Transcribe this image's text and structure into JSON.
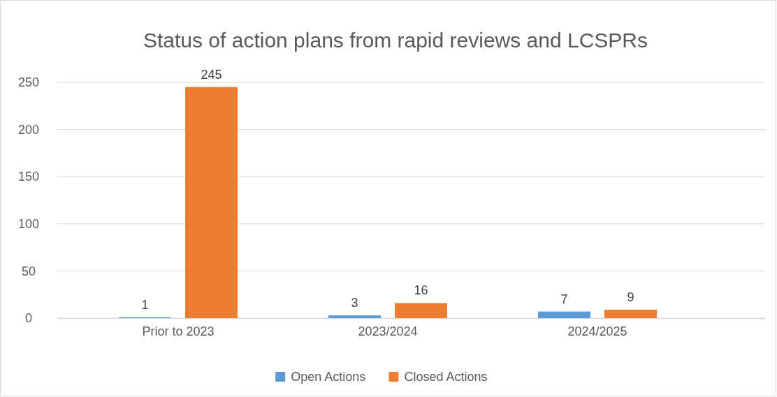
{
  "chart_data": {
    "type": "bar",
    "title": "Status of action plans from rapid reviews and LCSPRs",
    "categories": [
      "Prior to 2023",
      "2023/2024",
      "2024/2025"
    ],
    "series": [
      {
        "name": "Open Actions",
        "color": "#5b9bd5",
        "values": [
          1,
          3,
          7
        ]
      },
      {
        "name": "Closed Actions",
        "color": "#ed7d31",
        "values": [
          245,
          16,
          9
        ]
      }
    ],
    "ylim": [
      0,
      250
    ],
    "yticks": [
      0,
      50,
      100,
      150,
      200,
      250
    ],
    "grid": "y",
    "legend": "bottom",
    "data_labels": true
  }
}
